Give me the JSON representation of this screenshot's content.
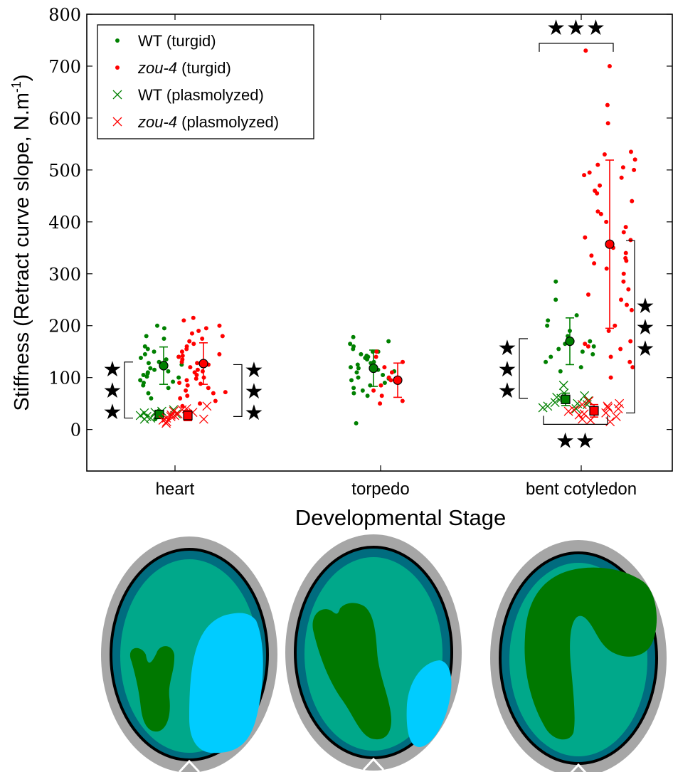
{
  "chart_data": {
    "type": "scatter",
    "ylabel": "Stiffness (Retract curve slope, N.m",
    "ylabel_sup": "-1",
    "ylabel_close": ")",
    "xlabel": "Developmental Stage",
    "categories": [
      "heart",
      "torpedo",
      "bent cotyledon"
    ],
    "ylim": [
      -80,
      800
    ],
    "yticks": [
      0,
      100,
      200,
      300,
      400,
      500,
      600,
      700,
      800
    ],
    "grid": false,
    "legend_position": "top-left",
    "legend": [
      {
        "label": "WT (turgid)",
        "italic_part": "",
        "rest": "WT (turgid)",
        "marker": "dot",
        "color": "#008000"
      },
      {
        "label": "zou-4 (turgid)",
        "italic_part": "zou-4",
        "rest": " (turgid)",
        "marker": "dot",
        "color": "#ff0000"
      },
      {
        "label": "WT (plasmolyzed)",
        "italic_part": "",
        "rest": "WT (plasmolyzed)",
        "marker": "x",
        "color": "#008000"
      },
      {
        "label": "zou-4 (plasmolyzed)",
        "italic_part": "zou-4",
        "rest": " (plasmolyzed)",
        "marker": "x",
        "color": "#ff0000"
      }
    ],
    "series": [
      {
        "name": "WT (turgid)",
        "color": "#008000",
        "marker": "dot",
        "points": {
          "heart": [
            195,
            180,
            160,
            150,
            145,
            140,
            135,
            130,
            125,
            120,
            118,
            115,
            110,
            108,
            105,
            100,
            95,
            90,
            85,
            80,
            60,
            35,
            20,
            200,
            175,
            155,
            138,
            128,
            112,
            102,
            92,
            70
          ],
          "torpedo": [
            178,
            170,
            165,
            160,
            155,
            150,
            145,
            140,
            138,
            135,
            130,
            125,
            120,
            118,
            115,
            110,
            105,
            100,
            95,
            90,
            85,
            80,
            75,
            70,
            65,
            150,
            142,
            128,
            112,
            98,
            12
          ],
          "bent cotyledon": [
            250,
            220,
            210,
            200,
            190,
            180,
            175,
            170,
            165,
            160,
            155,
            150,
            145,
            140,
            130,
            120,
            112,
            285
          ]
        },
        "mean_sd": {
          "heart": [
            123,
            36
          ],
          "torpedo": [
            118,
            35
          ],
          "bent cotyledon": [
            170,
            45
          ]
        }
      },
      {
        "name": "zou-4 (turgid)",
        "color": "#ff0000",
        "marker": "dot",
        "points": {
          "heart": [
            215,
            210,
            200,
            195,
            190,
            180,
            175,
            170,
            165,
            160,
            155,
            150,
            145,
            140,
            135,
            130,
            125,
            120,
            115,
            110,
            105,
            100,
            95,
            90,
            85,
            80,
            75,
            70,
            65,
            60,
            55,
            50,
            45,
            185,
            142,
            128,
            112,
            98,
            88,
            72
          ],
          "torpedo": [
            150,
            140,
            130,
            120,
            110,
            100,
            95,
            90,
            85,
            75,
            65,
            55,
            50
          ],
          "bent cotyledon": [
            730,
            700,
            625,
            590,
            535,
            530,
            520,
            510,
            505,
            500,
            495,
            490,
            485,
            470,
            460,
            440,
            420,
            400,
            390,
            380,
            370,
            350,
            340,
            335,
            330,
            325,
            320,
            310,
            300,
            285,
            270,
            260,
            250,
            240,
            230,
            200,
            190,
            170,
            165,
            160,
            155,
            140,
            130,
            120,
            100,
            455,
            415,
            365
          ]
        },
        "mean_sd": {
          "heart": [
            127,
            40
          ],
          "torpedo": [
            95,
            33
          ],
          "bent cotyledon": [
            357,
            162
          ]
        }
      },
      {
        "name": "WT (plasmolyzed)",
        "color": "#008000",
        "marker": "x",
        "points": {
          "heart": [
            38,
            35,
            33,
            30,
            28,
            25,
            22,
            20,
            32,
            27
          ],
          "torpedo": [],
          "bent cotyledon": [
            85,
            70,
            65,
            60,
            55,
            52,
            50,
            48,
            45,
            42,
            40,
            62
          ]
        },
        "mean_sd": {
          "heart": [
            29,
            5
          ],
          "torpedo": null,
          "bent cotyledon": [
            58,
            12
          ]
        }
      },
      {
        "name": "zou-4 (plasmolyzed)",
        "color": "#ff0000",
        "marker": "x",
        "points": {
          "heart": [
            45,
            40,
            35,
            30,
            28,
            25,
            22,
            20,
            18,
            15,
            12,
            33,
            27,
            38
          ],
          "torpedo": [],
          "bent cotyledon": [
            55,
            50,
            48,
            45,
            40,
            38,
            35,
            32,
            30,
            28,
            25,
            20,
            18,
            15,
            42
          ]
        },
        "mean_sd": {
          "heart": [
            27,
            10
          ],
          "torpedo": null,
          "bent cotyledon": [
            36,
            12
          ]
        }
      }
    ],
    "significance": [
      {
        "stage": "heart",
        "label": "★\n★\n★",
        "between": "WT turgid vs WT plasmolyzed"
      },
      {
        "stage": "heart",
        "label": "★\n★\n★",
        "between": "zou-4 turgid vs zou-4 plasmolyzed"
      },
      {
        "stage": "bent cotyledon",
        "label": "★\n★\n★",
        "between": "WT turgid vs WT plasmolyzed"
      },
      {
        "stage": "bent cotyledon",
        "label": "★\n★\n★",
        "between": "zou-4 turgid vs zou-4 plasmolyzed"
      },
      {
        "stage": "bent cotyledon",
        "label": "★★★",
        "between": "WT turgid vs zou-4 turgid"
      },
      {
        "stage": "bent cotyledon",
        "label": "★★",
        "between": "WT plasmolyzed vs zou-4 plasmolyzed"
      }
    ]
  },
  "illustrations": {
    "colors": {
      "outer_ring": "#a6a6a6",
      "shell": "#006c7f",
      "endosperm": "#00a88a",
      "embryo": "#007800",
      "vacuole": "#00ccff",
      "outline": "#000000"
    },
    "stages": [
      "heart",
      "torpedo",
      "bent cotyledon"
    ]
  }
}
